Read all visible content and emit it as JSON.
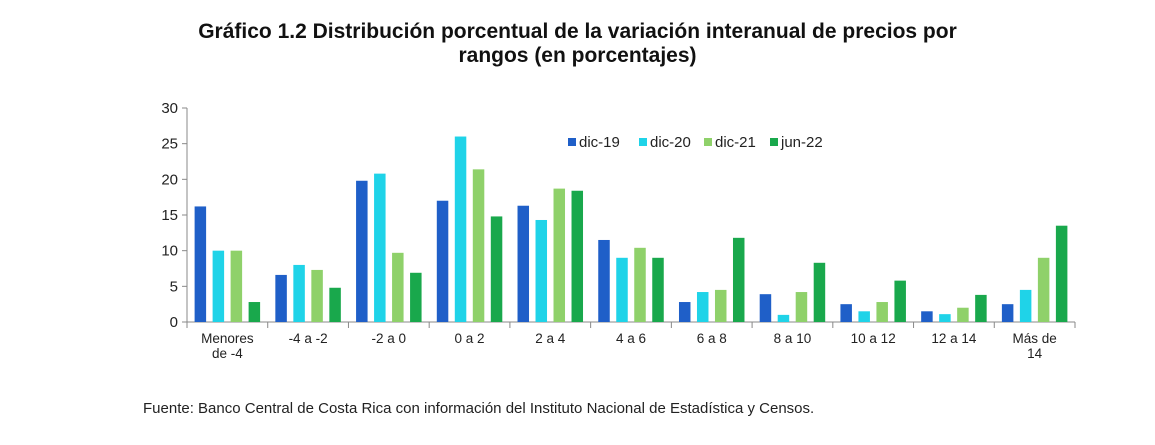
{
  "title": {
    "line1": "Gráfico 1.2 Distribución porcentual de la variación interanual de precios por",
    "line2": "rangos (en porcentajes)"
  },
  "source": "Fuente: Banco Central de Costa Rica con información del Instituto Nacional de Estadística y Censos.",
  "chart_data": {
    "type": "bar",
    "title": "Gráfico 1.2 Distribución porcentual de la variación interanual de precios por rangos (en porcentajes)",
    "xlabel": "",
    "ylabel": "",
    "ylim": [
      0,
      30
    ],
    "yticks": [
      "0",
      "5",
      "10",
      "15",
      "20",
      "25",
      "30"
    ],
    "grid": false,
    "legend_position": "top-right",
    "categories": [
      [
        "Menores",
        "de -4"
      ],
      [
        "-4 a -2"
      ],
      [
        "-2 a 0"
      ],
      [
        "0 a 2"
      ],
      [
        "2 a 4"
      ],
      [
        "4 a 6"
      ],
      [
        "6 a 8"
      ],
      [
        "8 a 10"
      ],
      [
        "10 a 12"
      ],
      [
        "12 a 14"
      ],
      [
        "Más de",
        "14"
      ]
    ],
    "series": [
      {
        "name": "dic-19",
        "color": "#1f5fc8",
        "values": [
          16.2,
          6.6,
          19.8,
          17.0,
          16.3,
          11.5,
          2.8,
          3.9,
          2.5,
          1.5,
          2.5
        ]
      },
      {
        "name": "dic-20",
        "color": "#1fd3e8",
        "values": [
          10.0,
          8.0,
          20.8,
          26.0,
          14.3,
          9.0,
          4.2,
          1.0,
          1.5,
          1.1,
          4.5
        ]
      },
      {
        "name": "dic-21",
        "color": "#8fd16a",
        "values": [
          10.0,
          7.3,
          9.7,
          21.4,
          18.7,
          10.4,
          4.5,
          4.2,
          2.8,
          2.0,
          9.0
        ]
      },
      {
        "name": "jun-22",
        "color": "#19a84c",
        "values": [
          2.8,
          4.8,
          6.9,
          14.8,
          18.4,
          9.0,
          11.8,
          8.3,
          5.8,
          3.8,
          13.5
        ]
      }
    ]
  }
}
